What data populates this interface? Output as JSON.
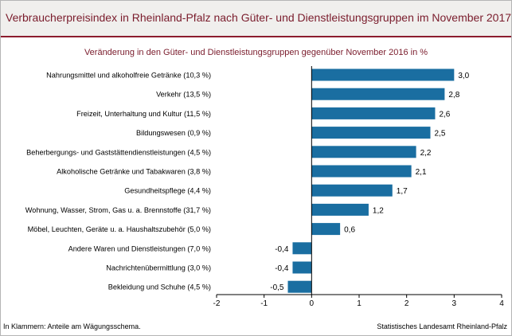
{
  "title": "Verbraucherpreisindex in Rheinland-Pfalz nach Güter- und Dienstleistungsgruppen im November 2017",
  "footnote": "In Klammern: Anteile am Wägungsschema.",
  "source": "Statistisches Landesamt Rheinland-Pfalz",
  "colors": {
    "bar": "#1a6ea1",
    "accent": "#8c1d2e",
    "title": "#7a1c2c",
    "header_bg": "#f0efed"
  },
  "chart_data": {
    "type": "bar",
    "orientation": "horizontal",
    "title": "Veränderung in den Güter- und Dienstleistungsgruppen gegenüber November 2016 in %",
    "categories": [
      "Nahrungsmittel und alkoholfreie Getränke (10,3 %)",
      "Verkehr (13,5 %)",
      "Freizeit, Unterhaltung und Kultur (11,5 %)",
      "Bildungswesen (0,9 %)",
      "Beherbergungs- und Gaststättendienstleistungen (4,5 %)",
      "Alkoholische Getränke und Tabakwaren (3,8 %)",
      "Gesundheitspflege (4,4 %)",
      "Wohnung, Wasser, Strom, Gas u. a. Brennstoffe (31,7 %)",
      "Möbel, Leuchten, Geräte u. a. Haushaltszubehör  (5,0 %)",
      "Andere Waren und Dienstleistungen (7,0 %)",
      "Nachrichtenübermittlung (3,0 %)",
      "Bekleidung und Schuhe (4,5 %)"
    ],
    "values": [
      3.0,
      2.8,
      2.6,
      2.5,
      2.2,
      2.1,
      1.7,
      1.2,
      0.6,
      -0.4,
      -0.4,
      -0.5
    ],
    "value_labels": [
      "3,0",
      "2,8",
      "2,6",
      "2,5",
      "2,2",
      "2,1",
      "1,7",
      "1,2",
      "0,6",
      "-0,4",
      "-0,4",
      "-0,5"
    ],
    "xlim": [
      -2,
      4
    ],
    "xticks": [
      -2,
      -1,
      0,
      1,
      2,
      3,
      4
    ],
    "xtick_labels": [
      "-2",
      "-1",
      "0",
      "1",
      "2",
      "3",
      "4"
    ],
    "grid": false,
    "legend": "none"
  }
}
